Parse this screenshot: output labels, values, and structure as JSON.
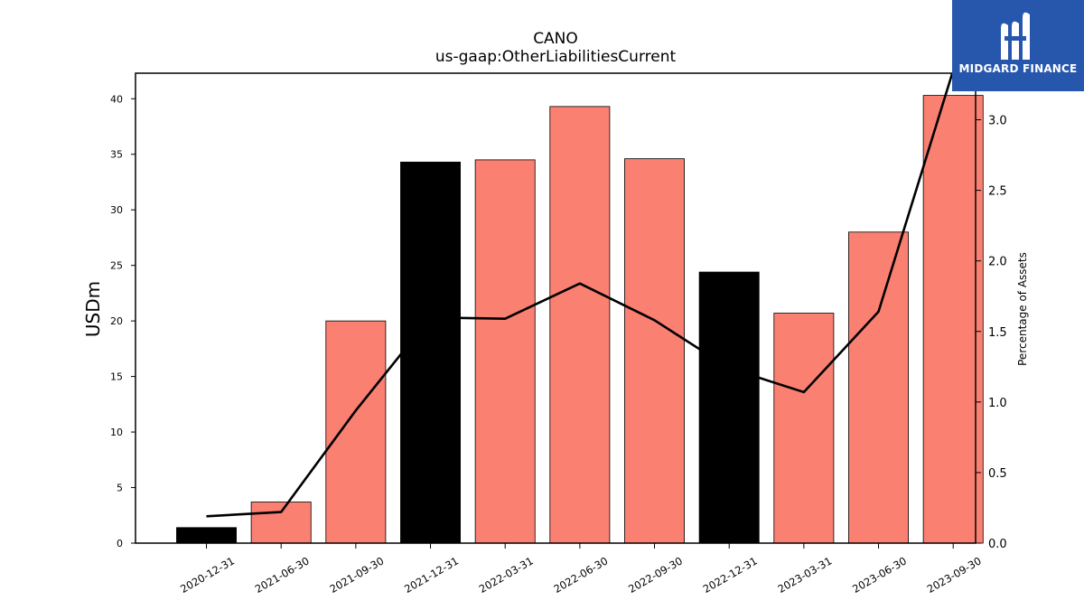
{
  "logo": {
    "text": "MIDGARD FINANCE",
    "icon": "midgard-logo-icon",
    "background": "#2757ad"
  },
  "chart_data": {
    "type": "bar",
    "title": "CANO",
    "subtitle": "us-gaap:OtherLiabilitiesCurrent",
    "ylabel": "USDm",
    "y2label": "Percentage of Assets",
    "categories": [
      "2020-12-31",
      "2021-06-30",
      "2021-09-30",
      "2021-12-31",
      "2022-03-31",
      "2022-06-30",
      "2022-09-30",
      "2022-12-31",
      "2023-03-31",
      "2023-06-30",
      "2023-09-30"
    ],
    "series": [
      {
        "type": "bar",
        "axis": "left",
        "values": [
          1.4,
          3.7,
          20.0,
          34.3,
          34.5,
          39.3,
          34.6,
          24.4,
          20.7,
          28.0,
          40.3
        ],
        "colors": [
          "#000000",
          "#fa8072",
          "#fa8072",
          "#000000",
          "#fa8072",
          "#fa8072",
          "#fa8072",
          "#000000",
          "#fa8072",
          "#fa8072",
          "#fa8072"
        ]
      },
      {
        "type": "line",
        "axis": "right",
        "color": "#000000",
        "values": [
          0.19,
          0.22,
          0.94,
          1.6,
          1.59,
          1.84,
          1.58,
          1.24,
          1.07,
          1.64,
          3.35
        ]
      }
    ],
    "ylim": [
      0,
      42.3
    ],
    "y2lim": [
      0,
      3.33
    ],
    "yticks": [
      0,
      5,
      10,
      15,
      20,
      25,
      30,
      35,
      40
    ],
    "y2ticks": [
      "0.0",
      "0.5",
      "1.0",
      "1.5",
      "2.0",
      "2.5",
      "3.0"
    ],
    "grid": false,
    "legend": "none"
  }
}
